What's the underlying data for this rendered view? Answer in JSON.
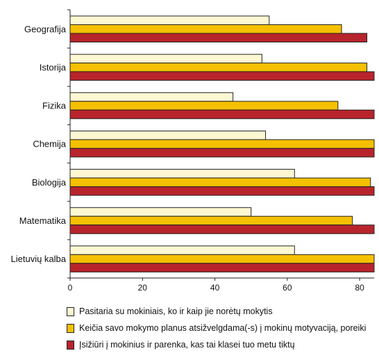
{
  "chart_data": {
    "type": "bar",
    "orientation": "horizontal",
    "categories": [
      "Geografija",
      "Istorija",
      "Fizika",
      "Chemija",
      "Biologija",
      "Matematika",
      "Lietuvių kalba"
    ],
    "series": [
      {
        "name": "Pasitaria su mokiniais, ko ir kaip jie norėtų mokytis",
        "color": "#fdf7d2",
        "values": [
          55,
          53,
          45,
          54,
          62,
          50,
          62
        ]
      },
      {
        "name": "Keičia savo mokymo planus atsižvelgdama(-s) į mokinų motyvaciją, poreikius ir gebėjimus",
        "color": "#f5c000",
        "values": [
          75,
          82,
          74,
          84,
          83,
          78,
          84
        ]
      },
      {
        "name": "Įsižiūri į mokinius ir parenka, kas tai klasei tuo metu tiktų",
        "color": "#b8242c",
        "values": [
          82,
          84,
          84,
          84,
          84,
          84,
          84
        ]
      }
    ],
    "xlim": [
      0,
      84
    ],
    "xticks": [
      0,
      20,
      40,
      60,
      80
    ],
    "xlabel": "",
    "ylabel": "",
    "title": "",
    "grid": false,
    "legend_position": "bottom"
  },
  "legend": [
    {
      "label": "Pasitaria su mokiniais, ko ir kaip jie norėtų mokytis"
    },
    {
      "label": "Keičia savo mokymo planus atsižvelgdama(-s) į mokinų motyvaciją, poreiki"
    },
    {
      "label": "Įsižiūri į mokinius ir parenka, kas tai klasei tuo metu tiktų"
    }
  ]
}
